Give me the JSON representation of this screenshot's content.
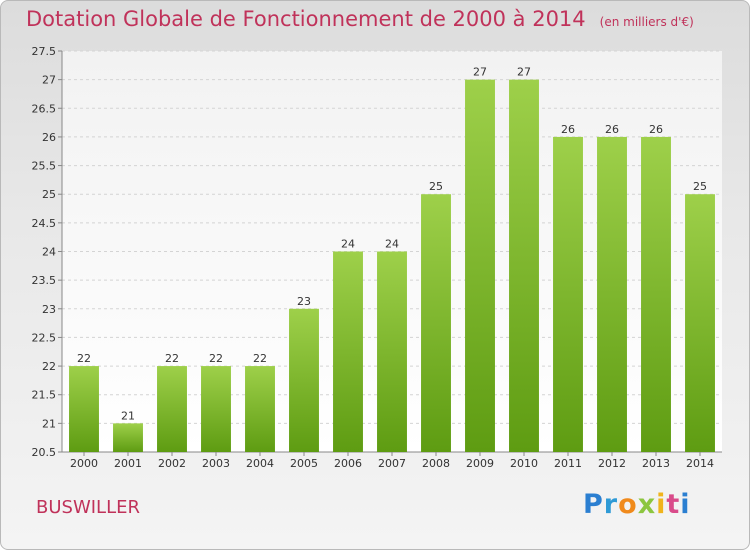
{
  "header": {
    "title": "Dotation Globale de Fonctionnement de 2000 à 2014",
    "unit": "(en milliers d'€)"
  },
  "footer": {
    "place": "BUSWILLER",
    "logo": [
      "P",
      "r",
      "o",
      "x",
      "i",
      "t",
      "i"
    ]
  },
  "colors": {
    "bar_top": "#9ed04a",
    "bar_bottom": "#5e9c12",
    "title": "#c0325a"
  },
  "chart_data": {
    "type": "bar",
    "categories": [
      "2000",
      "2001",
      "2002",
      "2003",
      "2004",
      "2005",
      "2006",
      "2007",
      "2008",
      "2009",
      "2010",
      "2011",
      "2012",
      "2013",
      "2014"
    ],
    "values": [
      22,
      21,
      22,
      22,
      22,
      23,
      24,
      24,
      25,
      27,
      27,
      26,
      26,
      26,
      25
    ],
    "data_labels": [
      "22",
      "21",
      "22",
      "22",
      "22",
      "23",
      "24",
      "24",
      "25",
      "27",
      "27",
      "26",
      "26",
      "26",
      "25"
    ],
    "title": "Dotation Globale de Fonctionnement de 2000 à 2014",
    "xlabel": "",
    "ylabel": "",
    "ylim": [
      20.5,
      27.5
    ],
    "yticks": [
      20.5,
      21,
      21.5,
      22,
      22.5,
      23,
      23.5,
      24,
      24.5,
      25,
      25.5,
      26,
      26.5,
      27,
      27.5
    ],
    "grid": true,
    "legend": "none"
  }
}
